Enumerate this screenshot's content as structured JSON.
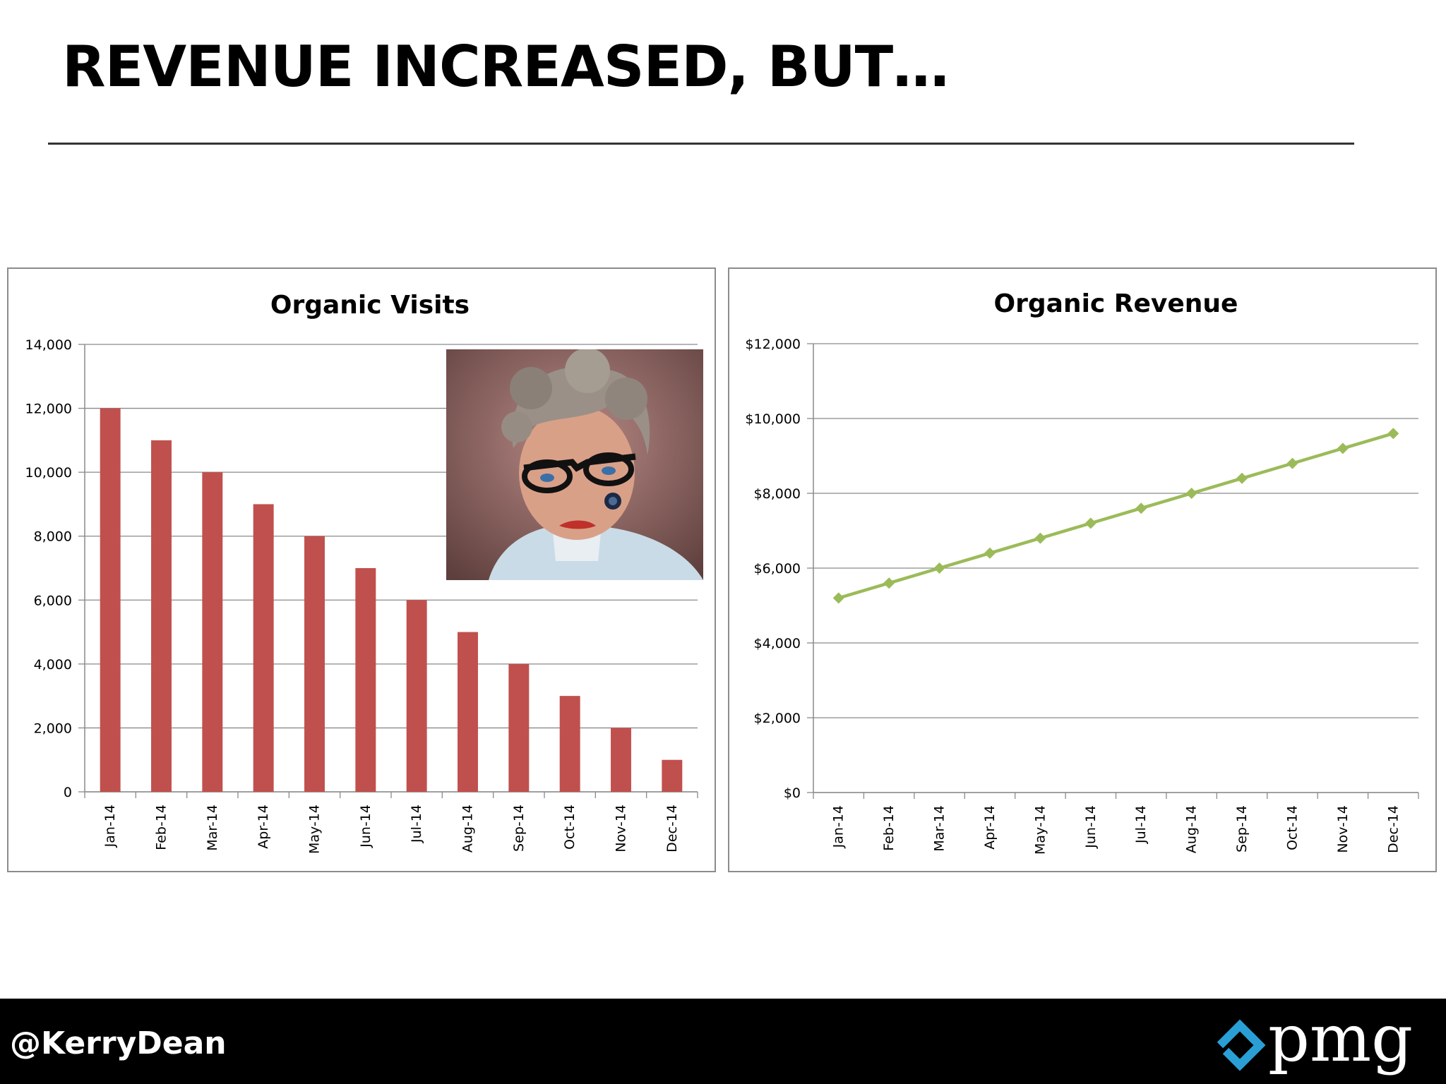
{
  "slide": {
    "title": "REVENUE INCREASED, BUT…",
    "twitter_handle": "@KerryDean",
    "brand": "pmg",
    "brand_accent_color": "#2a9fd6"
  },
  "photo": {
    "subject": "stern-older-woman-with-glasses-icon"
  },
  "chart_data": [
    {
      "type": "bar",
      "title": "Organic Visits",
      "xlabel": "",
      "ylabel": "",
      "categories": [
        "Jan-14",
        "Feb-14",
        "Mar-14",
        "Apr-14",
        "May-14",
        "Jun-14",
        "Jul-14",
        "Aug-14",
        "Sep-14",
        "Oct-14",
        "Nov-14",
        "Dec-14"
      ],
      "values": [
        12000,
        11000,
        10000,
        9000,
        8000,
        7000,
        6000,
        5000,
        4000,
        3000,
        2000,
        1000
      ],
      "ylim": [
        0,
        14000
      ],
      "yticks": [
        0,
        2000,
        4000,
        6000,
        8000,
        10000,
        12000,
        14000
      ],
      "ytick_labels": [
        "0",
        "2,000",
        "4,000",
        "6,000",
        "8,000",
        "10,000",
        "12,000",
        "14,000"
      ],
      "grid": true,
      "legend": "none",
      "color": "#c0504d"
    },
    {
      "type": "line",
      "title": "Organic Revenue",
      "xlabel": "",
      "ylabel": "",
      "categories": [
        "Jan-14",
        "Feb-14",
        "Mar-14",
        "Apr-14",
        "May-14",
        "Jun-14",
        "Jul-14",
        "Aug-14",
        "Sep-14",
        "Oct-14",
        "Nov-14",
        "Dec-14"
      ],
      "values": [
        5200,
        5600,
        6000,
        6400,
        6800,
        7200,
        7600,
        8000,
        8400,
        8800,
        9200,
        9600
      ],
      "ylim": [
        0,
        12000
      ],
      "yticks": [
        0,
        2000,
        4000,
        6000,
        8000,
        10000,
        12000
      ],
      "ytick_labels": [
        "$0",
        "$2,000",
        "$4,000",
        "$6,000",
        "$8,000",
        "$10,000",
        "$12,000"
      ],
      "grid": true,
      "legend": "none",
      "color": "#9bbb59",
      "marker": "diamond"
    }
  ]
}
